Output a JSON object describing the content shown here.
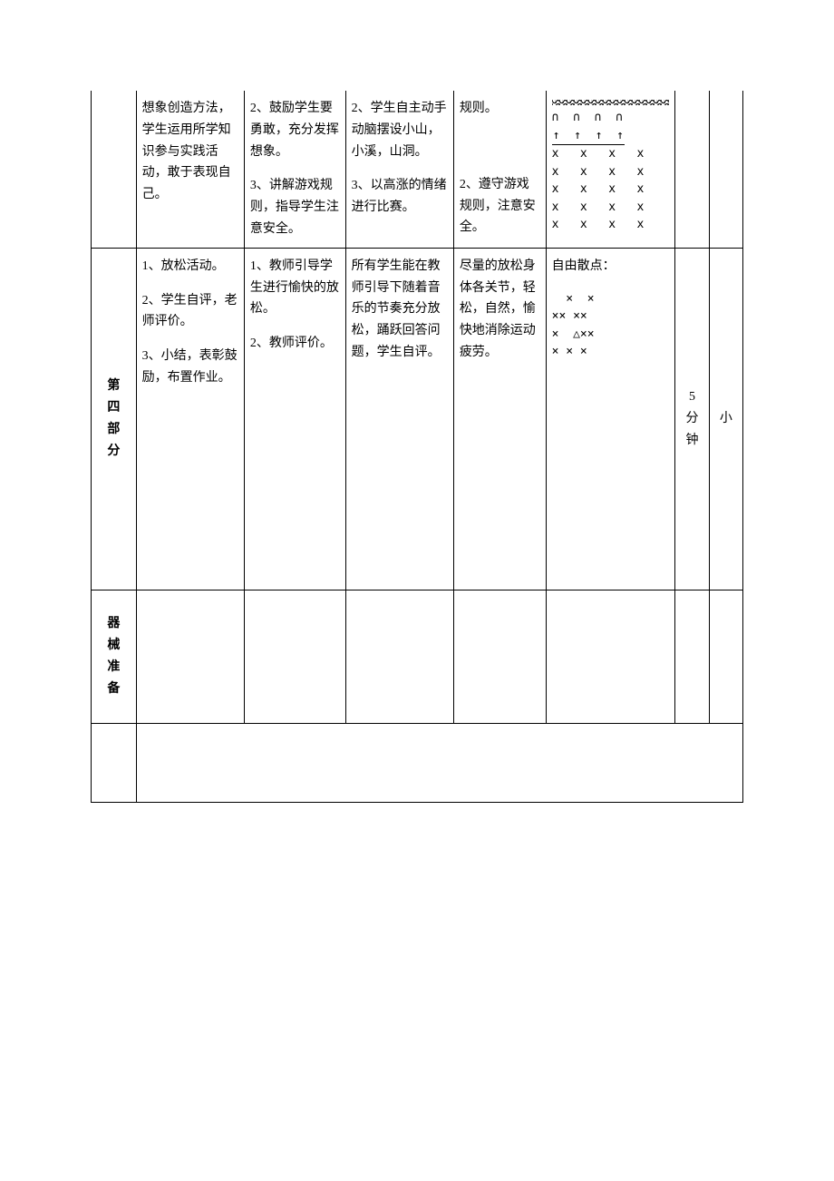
{
  "row1": {
    "label_chars": [],
    "col1": "想象创造方法，学生运用所学知识参与实践活动，敢于表现自己。",
    "col2_items": [
      "2、鼓励学生要勇敢，充分发挥想象。",
      "3、讲解游戏规则，指导学生注意安全。"
    ],
    "col3_items": [
      "2、学生自主动手动脑摆设小山，小溪，山洞。",
      "3、以高涨的情绪进行比赛。"
    ],
    "col4_items": [
      "规则。",
      "2、遵守游戏规则，注意安全。"
    ],
    "diagram": {
      "arches": "∩  ∩  ∩  ∩",
      "arrows": "↑  ↑  ↑  ↑",
      "x_rows": [
        "x   x   x   x",
        "x   x   x   x",
        "x   x   x   x",
        "x   x   x   x",
        "x   x   x   x"
      ]
    },
    "col6": "",
    "col7": ""
  },
  "row2": {
    "label_chars": [
      "第",
      "四",
      "部",
      "分"
    ],
    "col1_items": [
      "1、放松活动。",
      "2、学生自评，老师评价。",
      "3、小结，表彰鼓励，布置作业。"
    ],
    "col2_items": [
      "1、教师引导学生进行愉快的放松。",
      "2、教师评价。"
    ],
    "col3": "所有学生能在教师引导下随着音乐的节奏充分放松，踊跃回答问题，学生自评。",
    "col4": "尽量的放松身体各关节，轻松，自然，愉快地消除运动疲劳。",
    "diagram": {
      "title": "自由散点：",
      "lines": [
        "  ×  ×",
        "×× ××",
        "×  △××",
        "× × ×"
      ]
    },
    "col6": "5分钟",
    "col7": "小"
  },
  "row3": {
    "label": "器械准备",
    "cells": [
      "",
      "",
      "",
      "",
      "",
      "",
      ""
    ]
  }
}
